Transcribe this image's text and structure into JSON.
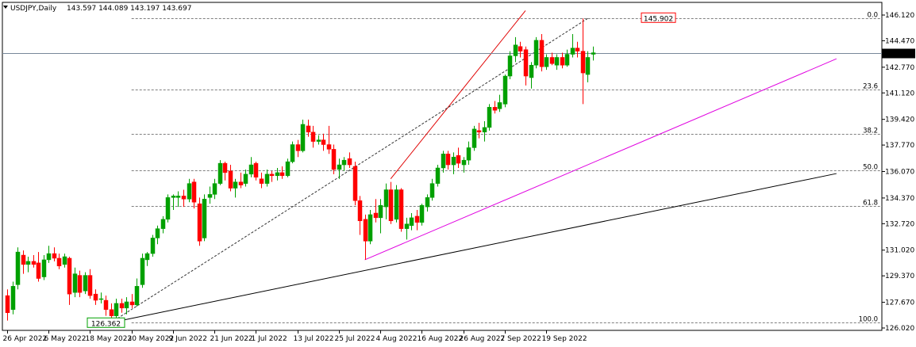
{
  "header": {
    "title": "USDJPY,Daily",
    "ohlc": "143.597 144.089 143.197 143.697"
  },
  "chart_data": {
    "type": "candlestick",
    "symbol": "USDJPY",
    "timeframe": "Daily",
    "last_price": "143.697",
    "ylim": [
      126.02,
      146.12
    ],
    "y_ticks": [
      "146.120",
      "144.470",
      "142.770",
      "141.120",
      "139.420",
      "137.770",
      "136.070",
      "134.370",
      "132.720",
      "131.020",
      "129.370",
      "127.670",
      "126.020"
    ],
    "x_ticks": [
      {
        "label": "26 Apr 2022",
        "index": 0
      },
      {
        "label": "6 May 2022",
        "index": 8
      },
      {
        "label": "18 May 2022",
        "index": 16
      },
      {
        "label": "30 May 2022",
        "index": 24
      },
      {
        "label": "9 Jun 2022",
        "index": 32
      },
      {
        "label": "21 Jun 2022",
        "index": 40
      },
      {
        "label": "1 Jul 2022",
        "index": 48
      },
      {
        "label": "13 Jul 2022",
        "index": 56
      },
      {
        "label": "25 Jul 2022",
        "index": 64
      },
      {
        "label": "4 Aug 2022",
        "index": 72
      },
      {
        "label": "16 Aug 2022",
        "index": 80
      },
      {
        "label": "26 Aug 2022",
        "index": 88
      },
      {
        "label": "7 Sep 2022",
        "index": 96
      },
      {
        "label": "19 Sep 2022",
        "index": 104
      }
    ],
    "fib_levels": [
      {
        "label": "0.0",
        "price": 145.902
      },
      {
        "label": "23.6",
        "price": 141.33
      },
      {
        "label": "38.2",
        "price": 138.51
      },
      {
        "label": "50.0",
        "price": 136.13
      },
      {
        "label": "61.8",
        "price": 133.85
      },
      {
        "label": "100.0",
        "price": 126.362
      }
    ],
    "fib_label_low": "126.362",
    "fib_label_high": "145.902",
    "colors": {
      "up": "#00a000",
      "down": "#ff0000",
      "trend_black": "#000000",
      "trend_red": "#e00000",
      "trend_magenta": "#e000e0",
      "fib": "#555555",
      "price_line": "#778899"
    },
    "candles": [
      {
        "o": 128.1,
        "h": 128.5,
        "l": 126.5,
        "c": 127.0
      },
      {
        "o": 127.2,
        "h": 129.0,
        "l": 126.9,
        "c": 128.7
      },
      {
        "o": 128.8,
        "h": 131.2,
        "l": 128.5,
        "c": 130.9
      },
      {
        "o": 130.7,
        "h": 131.0,
        "l": 129.5,
        "c": 130.1
      },
      {
        "o": 130.1,
        "h": 130.6,
        "l": 129.6,
        "c": 130.3
      },
      {
        "o": 130.3,
        "h": 130.7,
        "l": 129.9,
        "c": 130.1
      },
      {
        "o": 130.2,
        "h": 130.9,
        "l": 129.0,
        "c": 129.2
      },
      {
        "o": 129.3,
        "h": 130.7,
        "l": 129.1,
        "c": 130.4
      },
      {
        "o": 130.4,
        "h": 131.3,
        "l": 130.2,
        "c": 130.8
      },
      {
        "o": 130.8,
        "h": 131.2,
        "l": 130.3,
        "c": 130.5
      },
      {
        "o": 130.5,
        "h": 130.8,
        "l": 129.8,
        "c": 130.0
      },
      {
        "o": 130.1,
        "h": 130.8,
        "l": 129.9,
        "c": 130.6
      },
      {
        "o": 130.5,
        "h": 130.6,
        "l": 127.5,
        "c": 128.2
      },
      {
        "o": 128.3,
        "h": 129.9,
        "l": 128.0,
        "c": 129.5
      },
      {
        "o": 129.4,
        "h": 129.7,
        "l": 128.0,
        "c": 128.3
      },
      {
        "o": 128.4,
        "h": 129.6,
        "l": 128.2,
        "c": 129.4
      },
      {
        "o": 129.4,
        "h": 129.8,
        "l": 127.9,
        "c": 128.1
      },
      {
        "o": 128.2,
        "h": 128.5,
        "l": 127.5,
        "c": 127.8
      },
      {
        "o": 127.9,
        "h": 128.3,
        "l": 127.6,
        "c": 127.9
      },
      {
        "o": 127.8,
        "h": 128.1,
        "l": 126.8,
        "c": 127.2
      },
      {
        "o": 127.2,
        "h": 127.6,
        "l": 126.4,
        "c": 126.8
      },
      {
        "o": 126.8,
        "h": 127.9,
        "l": 126.5,
        "c": 127.6
      },
      {
        "o": 127.6,
        "h": 127.9,
        "l": 127.0,
        "c": 127.3
      },
      {
        "o": 127.3,
        "h": 128.0,
        "l": 126.9,
        "c": 127.7
      },
      {
        "o": 127.7,
        "h": 128.2,
        "l": 127.3,
        "c": 127.5
      },
      {
        "o": 127.5,
        "h": 129.2,
        "l": 127.4,
        "c": 128.7
      },
      {
        "o": 128.8,
        "h": 130.8,
        "l": 128.6,
        "c": 130.5
      },
      {
        "o": 130.4,
        "h": 130.9,
        "l": 130.0,
        "c": 130.8
      },
      {
        "o": 130.8,
        "h": 132.0,
        "l": 130.6,
        "c": 131.8
      },
      {
        "o": 131.8,
        "h": 132.6,
        "l": 131.4,
        "c": 132.4
      },
      {
        "o": 132.4,
        "h": 133.2,
        "l": 132.1,
        "c": 133.0
      },
      {
        "o": 133.0,
        "h": 134.6,
        "l": 132.8,
        "c": 134.4
      },
      {
        "o": 134.4,
        "h": 134.6,
        "l": 133.6,
        "c": 134.5
      },
      {
        "o": 134.4,
        "h": 134.8,
        "l": 133.8,
        "c": 134.5
      },
      {
        "o": 134.5,
        "h": 134.9,
        "l": 133.8,
        "c": 134.3
      },
      {
        "o": 134.3,
        "h": 135.6,
        "l": 134.1,
        "c": 135.3
      },
      {
        "o": 135.4,
        "h": 135.6,
        "l": 133.7,
        "c": 134.1
      },
      {
        "o": 134.0,
        "h": 134.4,
        "l": 131.3,
        "c": 131.6
      },
      {
        "o": 131.8,
        "h": 134.6,
        "l": 131.6,
        "c": 134.3
      },
      {
        "o": 134.4,
        "h": 135.1,
        "l": 134.0,
        "c": 134.6
      },
      {
        "o": 134.6,
        "h": 135.6,
        "l": 134.3,
        "c": 135.3
      },
      {
        "o": 135.3,
        "h": 136.8,
        "l": 135.2,
        "c": 136.6
      },
      {
        "o": 136.6,
        "h": 136.7,
        "l": 135.5,
        "c": 136.0
      },
      {
        "o": 136.1,
        "h": 136.5,
        "l": 134.8,
        "c": 135.0
      },
      {
        "o": 135.0,
        "h": 135.6,
        "l": 134.4,
        "c": 135.4
      },
      {
        "o": 135.4,
        "h": 136.0,
        "l": 135.0,
        "c": 135.2
      },
      {
        "o": 135.3,
        "h": 136.2,
        "l": 135.1,
        "c": 135.9
      },
      {
        "o": 135.9,
        "h": 137.0,
        "l": 135.7,
        "c": 136.5
      },
      {
        "o": 136.6,
        "h": 136.7,
        "l": 135.5,
        "c": 135.7
      },
      {
        "o": 135.6,
        "h": 136.0,
        "l": 135.0,
        "c": 135.3
      },
      {
        "o": 135.3,
        "h": 136.2,
        "l": 135.1,
        "c": 135.9
      },
      {
        "o": 135.9,
        "h": 136.1,
        "l": 135.4,
        "c": 135.8
      },
      {
        "o": 135.8,
        "h": 136.3,
        "l": 135.5,
        "c": 136.0
      },
      {
        "o": 136.0,
        "h": 136.4,
        "l": 135.6,
        "c": 135.8
      },
      {
        "o": 135.8,
        "h": 136.9,
        "l": 135.7,
        "c": 136.7
      },
      {
        "o": 136.7,
        "h": 138.0,
        "l": 136.6,
        "c": 137.8
      },
      {
        "o": 137.8,
        "h": 138.1,
        "l": 137.0,
        "c": 137.4
      },
      {
        "o": 137.4,
        "h": 139.4,
        "l": 137.3,
        "c": 139.1
      },
      {
        "o": 139.0,
        "h": 139.4,
        "l": 138.3,
        "c": 138.6
      },
      {
        "o": 138.6,
        "h": 139.0,
        "l": 137.6,
        "c": 138.0
      },
      {
        "o": 138.0,
        "h": 138.4,
        "l": 137.8,
        "c": 138.1
      },
      {
        "o": 138.1,
        "h": 138.5,
        "l": 137.4,
        "c": 137.8
      },
      {
        "o": 137.8,
        "h": 139.0,
        "l": 137.2,
        "c": 137.5
      },
      {
        "o": 137.5,
        "h": 137.8,
        "l": 135.9,
        "c": 136.2
      },
      {
        "o": 136.2,
        "h": 136.9,
        "l": 135.6,
        "c": 136.5
      },
      {
        "o": 136.5,
        "h": 137.0,
        "l": 136.1,
        "c": 136.8
      },
      {
        "o": 136.9,
        "h": 137.3,
        "l": 136.3,
        "c": 136.5
      },
      {
        "o": 136.4,
        "h": 136.7,
        "l": 133.9,
        "c": 134.2
      },
      {
        "o": 134.2,
        "h": 134.5,
        "l": 132.0,
        "c": 132.9
      },
      {
        "o": 133.0,
        "h": 133.3,
        "l": 130.4,
        "c": 131.6
      },
      {
        "o": 131.6,
        "h": 133.6,
        "l": 131.4,
        "c": 133.3
      },
      {
        "o": 133.4,
        "h": 134.3,
        "l": 132.8,
        "c": 133.1
      },
      {
        "o": 133.1,
        "h": 134.3,
        "l": 132.1,
        "c": 133.9
      },
      {
        "o": 133.8,
        "h": 135.3,
        "l": 133.0,
        "c": 134.9
      },
      {
        "o": 134.9,
        "h": 135.4,
        "l": 132.7,
        "c": 132.9
      },
      {
        "o": 133.0,
        "h": 135.2,
        "l": 132.8,
        "c": 134.9
      },
      {
        "o": 134.9,
        "h": 135.0,
        "l": 132.2,
        "c": 132.4
      },
      {
        "o": 132.4,
        "h": 133.1,
        "l": 131.7,
        "c": 132.7
      },
      {
        "o": 132.6,
        "h": 133.4,
        "l": 132.3,
        "c": 133.1
      },
      {
        "o": 133.2,
        "h": 133.6,
        "l": 132.3,
        "c": 132.8
      },
      {
        "o": 132.8,
        "h": 134.0,
        "l": 132.6,
        "c": 133.9
      },
      {
        "o": 133.8,
        "h": 134.6,
        "l": 133.5,
        "c": 134.4
      },
      {
        "o": 134.4,
        "h": 135.6,
        "l": 134.2,
        "c": 135.3
      },
      {
        "o": 135.3,
        "h": 136.5,
        "l": 135.1,
        "c": 136.3
      },
      {
        "o": 136.3,
        "h": 137.4,
        "l": 136.0,
        "c": 137.2
      },
      {
        "o": 137.2,
        "h": 137.4,
        "l": 136.2,
        "c": 136.5
      },
      {
        "o": 136.5,
        "h": 137.3,
        "l": 135.9,
        "c": 137.0
      },
      {
        "o": 137.1,
        "h": 137.6,
        "l": 136.3,
        "c": 136.6
      },
      {
        "o": 136.5,
        "h": 137.0,
        "l": 136.0,
        "c": 136.8
      },
      {
        "o": 136.8,
        "h": 138.0,
        "l": 136.5,
        "c": 137.6
      },
      {
        "o": 137.6,
        "h": 139.0,
        "l": 137.4,
        "c": 138.8
      },
      {
        "o": 138.7,
        "h": 139.2,
        "l": 138.2,
        "c": 138.6
      },
      {
        "o": 138.6,
        "h": 139.3,
        "l": 138.0,
        "c": 138.9
      },
      {
        "o": 138.9,
        "h": 140.4,
        "l": 138.7,
        "c": 140.2
      },
      {
        "o": 140.2,
        "h": 140.6,
        "l": 139.8,
        "c": 140.0
      },
      {
        "o": 140.1,
        "h": 141.0,
        "l": 139.9,
        "c": 140.5
      },
      {
        "o": 140.4,
        "h": 142.3,
        "l": 140.2,
        "c": 142.2
      },
      {
        "o": 142.2,
        "h": 143.8,
        "l": 142.0,
        "c": 143.5
      },
      {
        "o": 143.5,
        "h": 144.7,
        "l": 143.1,
        "c": 144.2
      },
      {
        "o": 144.1,
        "h": 144.4,
        "l": 143.4,
        "c": 143.8
      },
      {
        "o": 143.9,
        "h": 144.1,
        "l": 141.6,
        "c": 142.2
      },
      {
        "o": 142.1,
        "h": 143.1,
        "l": 141.4,
        "c": 142.9
      },
      {
        "o": 142.9,
        "h": 144.7,
        "l": 142.7,
        "c": 144.5
      },
      {
        "o": 144.5,
        "h": 144.9,
        "l": 142.5,
        "c": 142.8
      },
      {
        "o": 142.8,
        "h": 143.6,
        "l": 142.6,
        "c": 143.4
      },
      {
        "o": 143.4,
        "h": 143.7,
        "l": 142.9,
        "c": 143.0
      },
      {
        "o": 142.9,
        "h": 143.6,
        "l": 142.6,
        "c": 143.4
      },
      {
        "o": 143.4,
        "h": 143.7,
        "l": 142.7,
        "c": 142.9
      },
      {
        "o": 142.9,
        "h": 143.9,
        "l": 142.8,
        "c": 143.6
      },
      {
        "o": 143.6,
        "h": 144.9,
        "l": 143.4,
        "c": 144.0
      },
      {
        "o": 144.0,
        "h": 144.4,
        "l": 143.4,
        "c": 143.8
      },
      {
        "o": 143.8,
        "h": 145.9,
        "l": 140.4,
        "c": 142.4
      },
      {
        "o": 142.3,
        "h": 143.8,
        "l": 141.8,
        "c": 143.4
      },
      {
        "o": 143.6,
        "h": 144.1,
        "l": 143.2,
        "c": 143.7
      }
    ],
    "trendlines": [
      {
        "name": "support-black",
        "from": {
          "index": 20,
          "price": 126.362
        },
        "to": {
          "index": 160,
          "price": 135.94
        }
      },
      {
        "name": "support-magenta",
        "from": {
          "index": 69,
          "price": 130.4
        },
        "to": {
          "index": 160,
          "price": 143.31
        }
      },
      {
        "name": "channel-red",
        "from": {
          "index": 74,
          "price": 135.6
        },
        "to": {
          "index": 100,
          "price": 146.4
        }
      },
      {
        "name": "fib-diagonal",
        "from": {
          "index": 20,
          "price": 126.362
        },
        "to": {
          "index": 112,
          "price": 145.902
        }
      }
    ]
  }
}
